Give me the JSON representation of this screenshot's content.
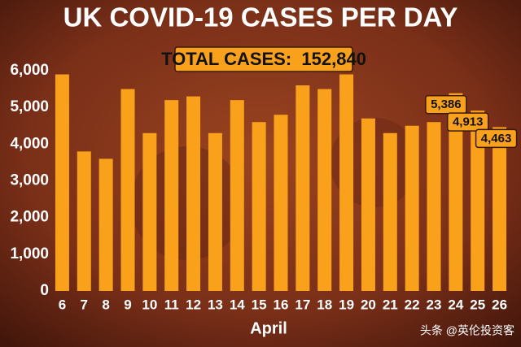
{
  "chart_data": {
    "type": "bar",
    "title": "UK COVID-19 CASES PER DAY",
    "annotation": "TOTAL CASES:  152,840",
    "x_label": "April",
    "watermark": "头条 @英伦投资客",
    "categories": [
      "6",
      "7",
      "8",
      "9",
      "10",
      "11",
      "12",
      "13",
      "14",
      "15",
      "16",
      "17",
      "18",
      "19",
      "20",
      "21",
      "22",
      "23",
      "24",
      "25",
      "26"
    ],
    "values": [
      5900,
      3800,
      3600,
      5500,
      4300,
      5200,
      5300,
      4300,
      5200,
      4600,
      4800,
      5600,
      5500,
      5900,
      4700,
      4300,
      4500,
      4600,
      5386,
      4913,
      4463
    ],
    "value_labels": [
      null,
      null,
      null,
      null,
      null,
      null,
      null,
      null,
      null,
      null,
      null,
      null,
      null,
      null,
      null,
      null,
      null,
      null,
      "5,386",
      "4,913",
      "4,463"
    ],
    "color": "#f9a11b",
    "ylim": [
      0,
      6000
    ],
    "yticks": [
      0,
      {
        "value": 1000,
        "label": "1,000"
      },
      {
        "value": 2000,
        "label": "2,000"
      },
      {
        "value": 3000,
        "label": "3,000"
      },
      {
        "value": 4000,
        "label": "4,000"
      },
      {
        "value": 5000,
        "label": "5,000"
      },
      {
        "value": 6000,
        "label": "6,000"
      }
    ],
    "grid": false
  }
}
